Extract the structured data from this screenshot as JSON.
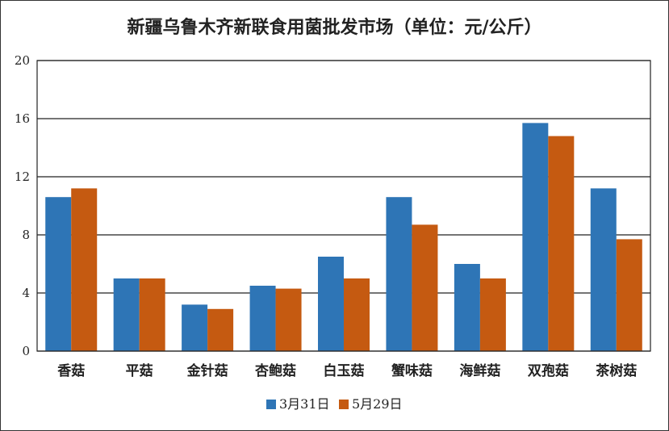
{
  "chart_data": {
    "type": "bar",
    "title": "新疆乌鲁木齐新联食用菌批发市场（单位：元/公斤）",
    "categories": [
      "香菇",
      "平菇",
      "金针菇",
      "杏鲍菇",
      "白玉菇",
      "蟹味菇",
      "海鲜菇",
      "双孢菇",
      "茶树菇"
    ],
    "series": [
      {
        "name": "3月31日",
        "color": "#2E75B6",
        "values": [
          10.6,
          5.0,
          3.2,
          4.5,
          6.5,
          10.6,
          6.0,
          15.7,
          11.2
        ]
      },
      {
        "name": "5月29日",
        "color": "#C55A11",
        "values": [
          11.2,
          5.0,
          2.9,
          4.3,
          5.0,
          8.7,
          5.0,
          14.8,
          7.7
        ]
      }
    ],
    "ylim": [
      0,
      20
    ],
    "yticks": [
      0,
      4,
      8,
      12,
      16,
      20
    ],
    "grid": true,
    "legend_position": "bottom"
  }
}
